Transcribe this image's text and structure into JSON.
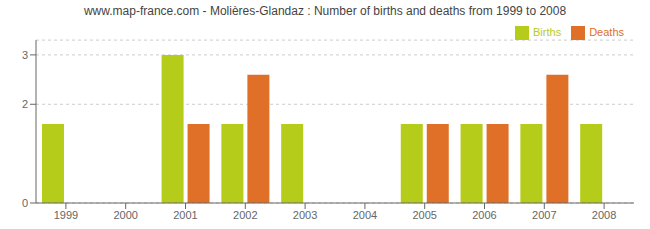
{
  "chart_data": {
    "type": "bar",
    "title": "www.map-france.com - Molières-Glandaz : Number of births and deaths from 1999 to 2008",
    "categories": [
      "1999",
      "2000",
      "2001",
      "2002",
      "2003",
      "2004",
      "2005",
      "2006",
      "2007",
      "2008"
    ],
    "series": [
      {
        "name": "Births",
        "color": "#b5cc1a",
        "values": [
          1.6,
          0.0,
          3.0,
          1.6,
          1.6,
          0.0,
          1.6,
          1.6,
          1.6,
          1.6
        ]
      },
      {
        "name": "Deaths",
        "color": "#e07028",
        "values": [
          0.0,
          0.0,
          1.6,
          2.6,
          0.0,
          0.0,
          1.6,
          1.6,
          2.6,
          0.0
        ]
      }
    ],
    "ylim": [
      0,
      3.3
    ],
    "yticks": [
      0,
      2,
      3
    ],
    "grid": true,
    "legend": "upper right"
  }
}
